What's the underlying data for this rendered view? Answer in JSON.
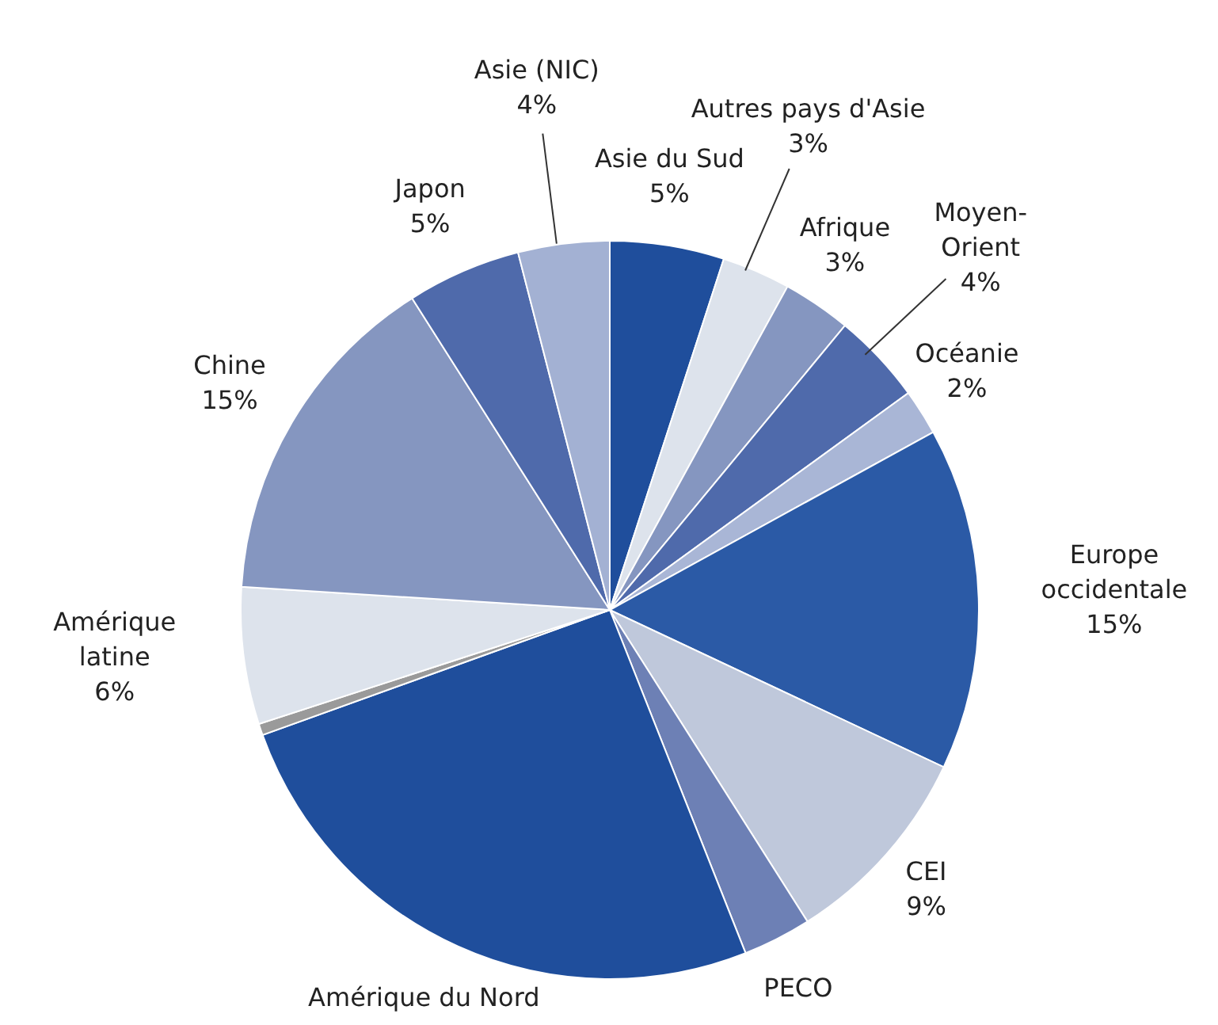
{
  "chart_data": {
    "type": "pie",
    "categories": [
      "Asie du Sud",
      "Autres pays d'Asie",
      "Afrique",
      "Moyen-Orient",
      "Océanie",
      "Europe occidentale",
      "CEI",
      "PECO",
      "Amérique du Nord",
      null,
      "Amérique latine",
      "Chine",
      "Japon",
      "Asie (NIC)"
    ],
    "values": [
      5,
      3,
      3,
      4,
      2,
      15,
      9,
      3,
      25.5,
      0.5,
      6,
      15,
      5,
      4
    ],
    "value_labels": [
      "5%",
      "3%",
      "3%",
      "4%",
      "2%",
      "15%",
      "9%",
      null,
      null,
      null,
      "6%",
      "15%",
      "5%",
      "4%"
    ],
    "colors": [
      "#1f4e9c",
      "#dde3ec",
      "#8596c0",
      "#4f6aab",
      "#a9b6d6",
      "#2b5aa6",
      "#bfc8db",
      "#6d80b5",
      "#1f4e9c",
      "#9a9a9a",
      "#dde3ec",
      "#8596c0",
      "#4f6aab",
      "#a3b1d3"
    ],
    "legend": false
  }
}
